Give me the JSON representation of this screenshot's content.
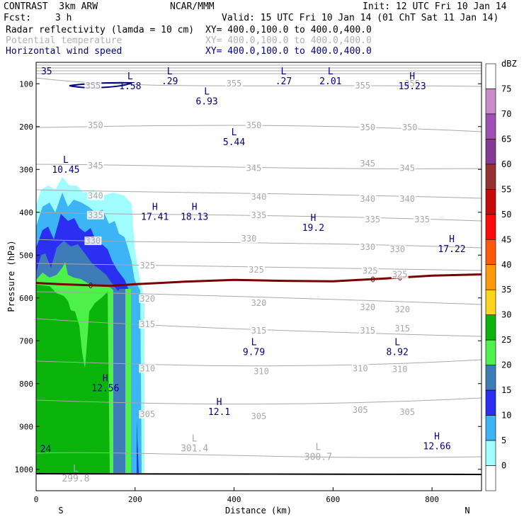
{
  "header": {
    "model": "CONTRAST  3km ARW",
    "center": "NCAR/MMM",
    "init": "Init: 12 UTC Fri 10 Jan 14",
    "fcst_label": "Fcst:",
    "fcst_value": "3 h",
    "valid": "Valid: 15 UTC Fri 10 Jan 14 (01 ChT Sat 11 Jan 14)",
    "fields": [
      {
        "name": "Radar reflectivity (lamda = 10 cm)",
        "xy": "XY= 400.0,100.0 to 400.0,400.0",
        "color": "#000000"
      },
      {
        "name": "Potential temperature",
        "xy": "XY= 400.0,100.0 to 400.0,400.0",
        "color": "#b0b0b0"
      },
      {
        "name": "Horizontal wind speed",
        "xy": "XY= 400.0,100.0 to 400.0,400.0",
        "color": "#000080"
      }
    ]
  },
  "chart_data": {
    "type": "cross-section",
    "xlabel": "Distance (km)",
    "ylabel": "Pressure (hPa)",
    "xlim": [
      0,
      900
    ],
    "ylim": [
      1050,
      50
    ],
    "x_ticks": [
      0,
      200,
      400,
      600,
      800
    ],
    "y_ticks": [
      100,
      200,
      300,
      400,
      500,
      600,
      700,
      800,
      900,
      1000
    ],
    "x_end_labels": {
      "left": "S",
      "right": "N"
    },
    "colorbar": {
      "unit": "dBZ",
      "levels": [
        0,
        5,
        10,
        15,
        20,
        25,
        30,
        35,
        40,
        45,
        50,
        55,
        60,
        65,
        70,
        75
      ],
      "colors": [
        "#ffffff",
        "#9ffcff",
        "#3cb4f5",
        "#2a2ff2",
        "#3e7cb8",
        "#4ef04a",
        "#0ab40a",
        "#fed41d",
        "#fe9a0a",
        "#fe5a0a",
        "#fe0a0a",
        "#c80a0a",
        "#963232",
        "#823c96",
        "#a050b4",
        "#c88cc8",
        "#ffffff"
      ]
    },
    "freezing_level": {
      "label": "0",
      "x": [
        0,
        50,
        100,
        150,
        200,
        300,
        400,
        500,
        600,
        700,
        800,
        900
      ],
      "p": [
        565,
        568,
        570,
        572,
        568,
        562,
        558,
        560,
        561,
        555,
        548,
        545
      ]
    },
    "theta_labels": [
      {
        "v": "355",
        "x": 115,
        "p": 108
      },
      {
        "v": "355",
        "x": 400,
        "p": 103
      },
      {
        "v": "355",
        "x": 660,
        "p": 108
      },
      {
        "v": "355",
        "x": 760,
        "p": 103
      },
      {
        "v": "350",
        "x": 120,
        "p": 200
      },
      {
        "v": "350",
        "x": 440,
        "p": 200
      },
      {
        "v": "350",
        "x": 670,
        "p": 205
      },
      {
        "v": "350",
        "x": 755,
        "p": 205
      },
      {
        "v": "345",
        "x": 120,
        "p": 295
      },
      {
        "v": "345",
        "x": 440,
        "p": 300
      },
      {
        "v": "345",
        "x": 670,
        "p": 290
      },
      {
        "v": "345",
        "x": 750,
        "p": 300
      },
      {
        "v": "340",
        "x": 120,
        "p": 365
      },
      {
        "v": "340",
        "x": 450,
        "p": 367
      },
      {
        "v": "340",
        "x": 670,
        "p": 372
      },
      {
        "v": "340",
        "x": 750,
        "p": 372
      },
      {
        "v": "335",
        "x": 120,
        "p": 410
      },
      {
        "v": "335",
        "x": 450,
        "p": 410
      },
      {
        "v": "335",
        "x": 680,
        "p": 420
      },
      {
        "v": "335",
        "x": 780,
        "p": 420
      },
      {
        "v": "330",
        "x": 115,
        "p": 470
      },
      {
        "v": "330",
        "x": 430,
        "p": 465
      },
      {
        "v": "330",
        "x": 670,
        "p": 485
      },
      {
        "v": "330",
        "x": 730,
        "p": 490
      },
      {
        "v": "325",
        "x": 225,
        "p": 528
      },
      {
        "v": "325",
        "x": 445,
        "p": 538
      },
      {
        "v": "325",
        "x": 675,
        "p": 540
      },
      {
        "v": "325",
        "x": 735,
        "p": 548
      },
      {
        "v": "320",
        "x": 225,
        "p": 605
      },
      {
        "v": "320",
        "x": 450,
        "p": 615
      },
      {
        "v": "320",
        "x": 670,
        "p": 625
      },
      {
        "v": "320",
        "x": 740,
        "p": 630
      },
      {
        "v": "315",
        "x": 225,
        "p": 665
      },
      {
        "v": "315",
        "x": 450,
        "p": 680
      },
      {
        "v": "315",
        "x": 670,
        "p": 680
      },
      {
        "v": "315",
        "x": 740,
        "p": 675
      },
      {
        "v": "310",
        "x": 225,
        "p": 768
      },
      {
        "v": "310",
        "x": 455,
        "p": 775
      },
      {
        "v": "310",
        "x": 655,
        "p": 768
      },
      {
        "v": "310",
        "x": 735,
        "p": 770
      },
      {
        "v": "305",
        "x": 225,
        "p": 875
      },
      {
        "v": "305",
        "x": 450,
        "p": 880
      },
      {
        "v": "305",
        "x": 655,
        "p": 865
      },
      {
        "v": "305",
        "x": 750,
        "p": 870
      }
    ],
    "wind_labels": [
      {
        "type": "L",
        "value": "1.58",
        "x": 190,
        "p": 90
      },
      {
        "type": "L",
        "value": ".29",
        "x": 270,
        "p": 78
      },
      {
        "type": "L",
        "value": ".27",
        "x": 500,
        "p": 78
      },
      {
        "type": "L",
        "value": "2.01",
        "x": 595,
        "p": 78
      },
      {
        "type": "H",
        "value": "15.23",
        "x": 760,
        "p": 90
      },
      {
        "type": "L",
        "value": "6.93",
        "x": 345,
        "p": 125
      },
      {
        "type": "L",
        "value": "5.44",
        "x": 400,
        "p": 220
      },
      {
        "type": "L",
        "value": "10.45",
        "x": 60,
        "p": 285
      },
      {
        "type": "H",
        "value": "17.41",
        "x": 240,
        "p": 395
      },
      {
        "type": "H",
        "value": "18.13",
        "x": 320,
        "p": 395
      },
      {
        "type": "H",
        "value": "19.2",
        "x": 560,
        "p": 420
      },
      {
        "type": "H",
        "value": "17.22",
        "x": 840,
        "p": 470
      },
      {
        "type": "L",
        "value": "9.79",
        "x": 440,
        "p": 710
      },
      {
        "type": "L",
        "value": "8.92",
        "x": 730,
        "p": 710
      },
      {
        "type": "H",
        "value": "12.56",
        "x": 140,
        "p": 795
      },
      {
        "type": "H",
        "value": "12.1",
        "x": 370,
        "p": 850
      },
      {
        "type": "H",
        "value": "12.66",
        "x": 810,
        "p": 930
      }
    ],
    "wind_edge_labels": [
      {
        "value": "35",
        "x": 10,
        "p": 78
      },
      {
        "value": "24",
        "x": 8,
        "p": 960
      }
    ],
    "theta_extrema": [
      {
        "type": "L",
        "value": "301.4",
        "x": 320,
        "p": 935
      },
      {
        "type": "L",
        "value": "300.7",
        "x": 570,
        "p": 955
      },
      {
        "type": "L",
        "value": "299.8",
        "x": 80,
        "p": 1005
      }
    ]
  }
}
